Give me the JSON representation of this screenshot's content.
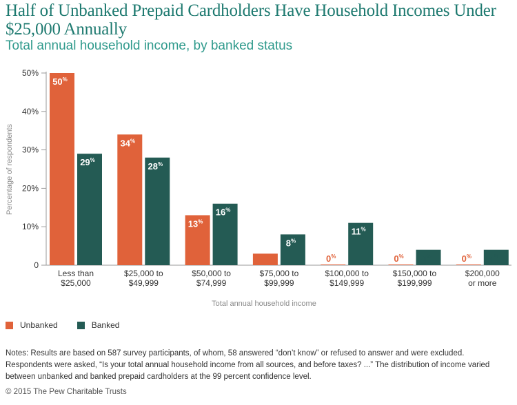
{
  "title": "Half of Unbanked Prepaid Cardholders Have Household Incomes Under $25,000 Annually",
  "subtitle": "Total annual household income, by banked status",
  "colors": {
    "unbanked": "#e0623a",
    "banked": "#245b54",
    "title": "#1e7a70"
  },
  "chart_data": {
    "type": "bar",
    "title": "Half of Unbanked Prepaid Cardholders Have Household Incomes Under $25,000 Annually",
    "subtitle": "Total annual household income, by banked status",
    "xlabel": "Total annual household income",
    "ylabel": "Percentage of respondents",
    "ylim": [
      0,
      50
    ],
    "yticks": [
      "0",
      "10%",
      "20%",
      "30%",
      "40%",
      "50%"
    ],
    "grid": false,
    "legend_position": "bottom-left",
    "categories": [
      [
        "Less than",
        "$25,000"
      ],
      [
        "$25,000 to",
        "$49,999"
      ],
      [
        "$50,000 to",
        "$74,999"
      ],
      [
        "$75,000 to",
        "$99,999"
      ],
      [
        "$100,000 to",
        "$149,999"
      ],
      [
        "$150,000 to",
        "$199,999"
      ],
      [
        "$200,000",
        "or more"
      ]
    ],
    "series": [
      {
        "name": "Unbanked",
        "values": [
          50,
          34,
          13,
          3,
          0,
          0,
          0
        ]
      },
      {
        "name": "Banked",
        "values": [
          29,
          28,
          16,
          8,
          11,
          4,
          4
        ]
      }
    ]
  },
  "legend": {
    "unbanked": "Unbanked",
    "banked": "Banked"
  },
  "notes": "Notes: Results are based on 587 survey participants, of whom, 58 answered “don’t know” or refused to answer and were excluded. Respondents were asked, “Is your total annual household income from all sources, and before taxes? ...” The distribution of income varied between unbanked and banked prepaid cardholders at the 99 percent confidence level.",
  "copyright": "© 2015 The Pew Charitable Trusts"
}
